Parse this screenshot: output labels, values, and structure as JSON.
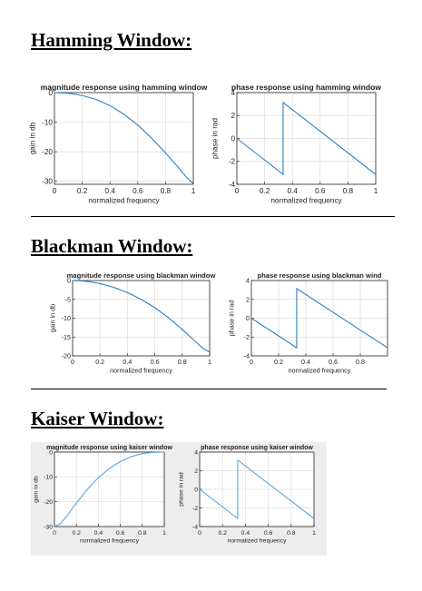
{
  "sections": [
    {
      "heading": "Hamming Window:",
      "chart_data": [
        {
          "type": "line",
          "title": "magnitude response using hamming window",
          "xlabel": "normalized frequency",
          "ylabel": "gain in db",
          "xlim": [
            0,
            1
          ],
          "ylim": [
            -31,
            0
          ],
          "xticks": [
            "0",
            "0.2",
            "0.4",
            "0.6",
            "0.8",
            "1"
          ],
          "yticks": [
            "0",
            "-10",
            "-20",
            "-30"
          ],
          "ytick_values": [
            0,
            -10,
            -20,
            -30
          ],
          "grid": true,
          "color": "#2f7fc0",
          "x": [
            0,
            0.1,
            0.2,
            0.3,
            0.4,
            0.5,
            0.6,
            0.7,
            0.8,
            0.9,
            0.95,
            1.0
          ],
          "y": [
            0,
            -0.2,
            -1.0,
            -2.3,
            -4.4,
            -7.3,
            -11.0,
            -15.4,
            -20.4,
            -25.7,
            -28.6,
            -30.8
          ]
        },
        {
          "type": "line",
          "title": "phase response using hamming window",
          "xlabel": "normalized frequency",
          "ylabel": "phase in rad",
          "xlim": [
            0,
            1
          ],
          "ylim": [
            -4,
            4
          ],
          "xticks": [
            "0",
            "0.2",
            "0.4",
            "0.6",
            "0.8",
            "1"
          ],
          "yticks": [
            "4",
            "2",
            "0",
            "-2",
            "-4"
          ],
          "ytick_values": [
            4,
            2,
            0,
            -2,
            -4
          ],
          "grid": true,
          "color": "#2f7fc0",
          "x": [
            0,
            0.333,
            0.333,
            1.0
          ],
          "y": [
            0,
            -3.14,
            3.14,
            -3.14
          ]
        }
      ]
    },
    {
      "heading": "Blackman Window:",
      "chart_data": [
        {
          "type": "line",
          "title": "magnitude response using blackman window",
          "xlabel": "normalized frequency",
          "ylabel": "gain in db",
          "xlim": [
            0,
            1
          ],
          "ylim": [
            -20,
            0
          ],
          "xticks": [
            "0",
            "0.2",
            "0.4",
            "0.6",
            "0.8",
            "1"
          ],
          "yticks": [
            "0",
            "-5",
            "-10",
            "-15",
            "-20"
          ],
          "ytick_values": [
            0,
            -5,
            -10,
            -15,
            -20
          ],
          "grid": true,
          "color": "#2f7fc0",
          "x": [
            0,
            0.1,
            0.2,
            0.3,
            0.4,
            0.5,
            0.6,
            0.7,
            0.8,
            0.9,
            0.95,
            1.0
          ],
          "y": [
            0,
            -0.2,
            -0.8,
            -1.8,
            -3.2,
            -5.0,
            -7.2,
            -9.9,
            -13.0,
            -16.3,
            -18.0,
            -19.0
          ]
        },
        {
          "type": "line",
          "title": "phase response using blackman wind",
          "xlabel": "normalized frequency",
          "ylabel": "phase in rad",
          "xlim": [
            0,
            1
          ],
          "ylim": [
            -4,
            4
          ],
          "xticks": [
            "0",
            "0.2",
            "0.4",
            "0.6",
            "0.8"
          ],
          "yticks": [
            "4",
            "2",
            "0",
            "-2",
            "-4"
          ],
          "ytick_values": [
            4,
            2,
            0,
            -2,
            -4
          ],
          "grid": true,
          "color": "#2f7fc0",
          "x": [
            0,
            0.333,
            0.333,
            1.0
          ],
          "y": [
            0,
            -3.14,
            3.14,
            -3.14
          ]
        }
      ]
    },
    {
      "heading": "Kaiser Window:",
      "chart_data": [
        {
          "type": "line",
          "title": "magnitude response using kaiser window",
          "xlabel": "normalized frequency",
          "ylabel": "gain in db",
          "xlim": [
            0,
            1
          ],
          "ylim": [
            -30,
            0
          ],
          "xticks": [
            "0",
            "0.2",
            "0.4",
            "0.6",
            "0.8",
            "1"
          ],
          "yticks": [
            "0",
            "-10",
            "-20",
            "-30"
          ],
          "ytick_values": [
            0,
            -10,
            -20,
            -30
          ],
          "grid": true,
          "color": "#5aa6d8",
          "x": [
            0,
            0.05,
            0.1,
            0.2,
            0.3,
            0.4,
            0.5,
            0.6,
            0.7,
            0.8,
            0.9,
            1.0
          ],
          "y": [
            -30,
            -29.0,
            -26.5,
            -20.5,
            -15.0,
            -10.3,
            -6.6,
            -3.8,
            -1.8,
            -0.6,
            -0.1,
            0
          ]
        },
        {
          "type": "line",
          "title": "phase response using kaiser window",
          "xlabel": "normalized frequency",
          "ylabel": "phase in rad",
          "xlim": [
            0,
            1
          ],
          "ylim": [
            -4,
            4
          ],
          "xticks": [
            "0",
            "0.2",
            "0.4",
            "0.6",
            "0.8",
            "1"
          ],
          "yticks": [
            "4",
            "2",
            "0",
            "-2",
            "-4"
          ],
          "ytick_values": [
            4,
            2,
            0,
            -2,
            -4
          ],
          "grid": true,
          "color": "#5aa6d8",
          "x": [
            0,
            0.333,
            0.333,
            1.0
          ],
          "y": [
            0,
            -3.14,
            3.14,
            -3.14
          ]
        }
      ]
    }
  ]
}
